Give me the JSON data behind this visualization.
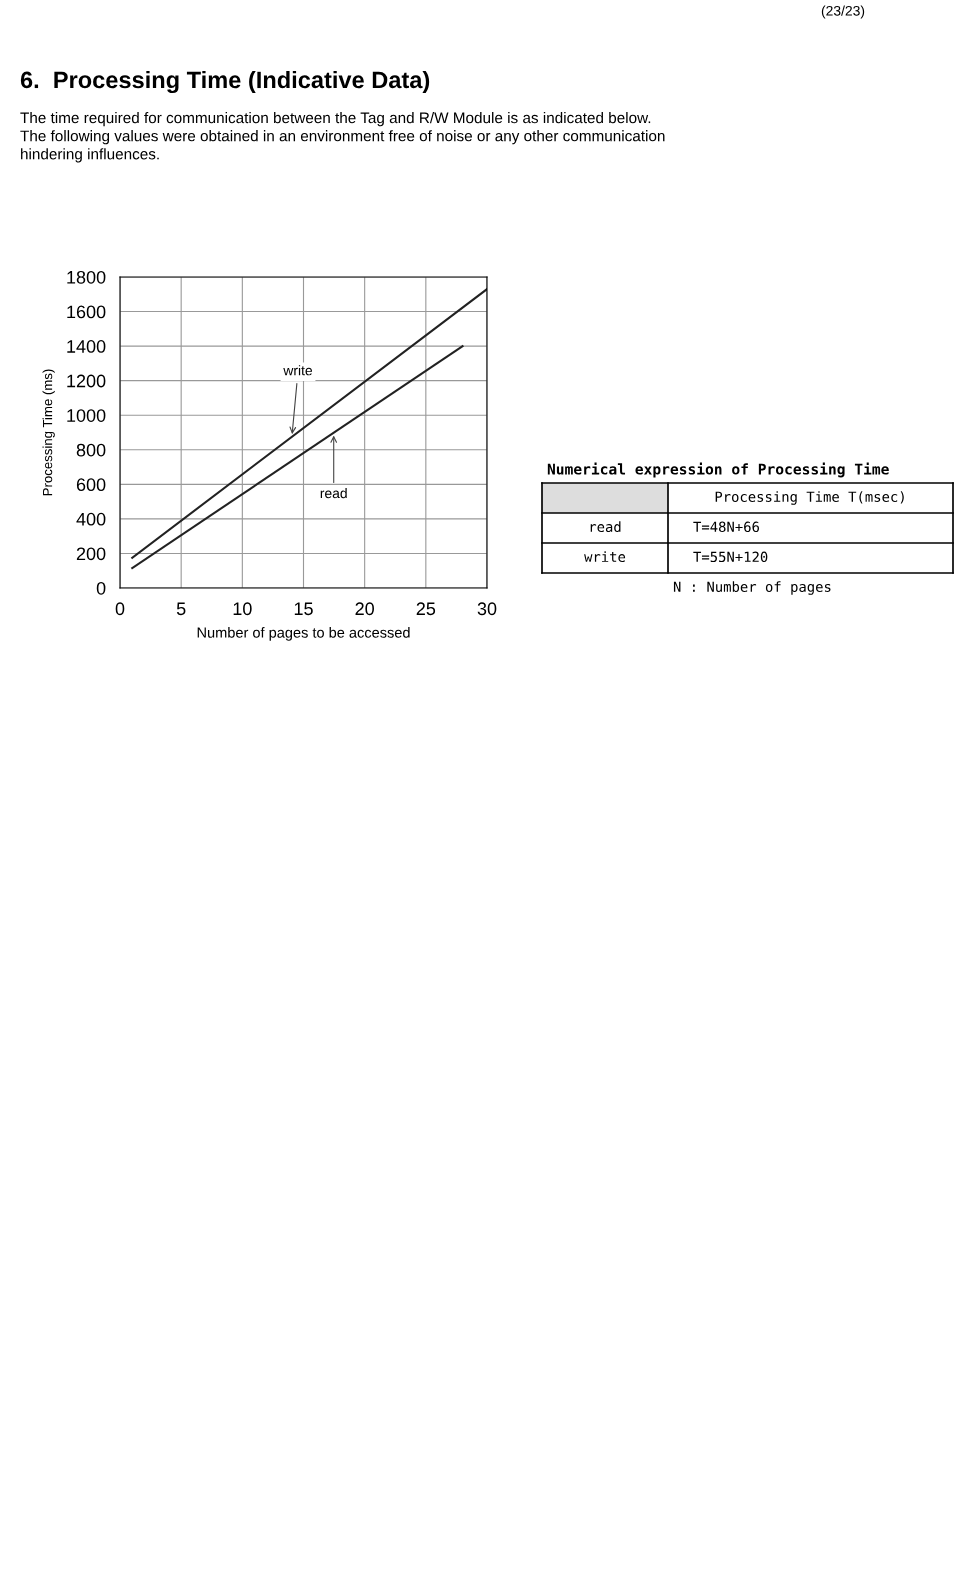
{
  "chart_data": {
    "type": "line",
    "title": "6.  Processing Time (Indicative Data)",
    "subtitle": "The time required for communication between the Tag and R/W Module is as indicated below.\nThe following values were obtained in an environment free of noise or any other communication\nhindering influences.",
    "xlabel": "Number of pages to be accessed",
    "ylabel": "Processing Time (ms)",
    "series": [
      {
        "name": "write",
        "color": "#222222",
        "x": [
          1,
          30
        ],
        "values": [
          175,
          1730
        ]
      },
      {
        "name": "read",
        "color": "#222222",
        "x": [
          1,
          28
        ],
        "values": [
          115,
          1400
        ]
      }
    ],
    "annotations": [
      "(23/23)",
      "Numerical expression of Processing Time",
      "Processing Time T(msec)",
      "read",
      "T=48N+66",
      "write",
      "T=55N+120",
      "N : Number of pages"
    ],
    "xlim": [
      0,
      30
    ],
    "ylim": [
      0,
      1800
    ],
    "xticks": [
      0,
      5,
      10,
      15,
      20,
      25,
      30
    ],
    "yticks": [
      0,
      200,
      400,
      600,
      800,
      1000,
      1200,
      1400,
      1600,
      1800
    ],
    "grid": true,
    "legend": false,
    "marker": "none",
    "line_style": "solid"
  }
}
